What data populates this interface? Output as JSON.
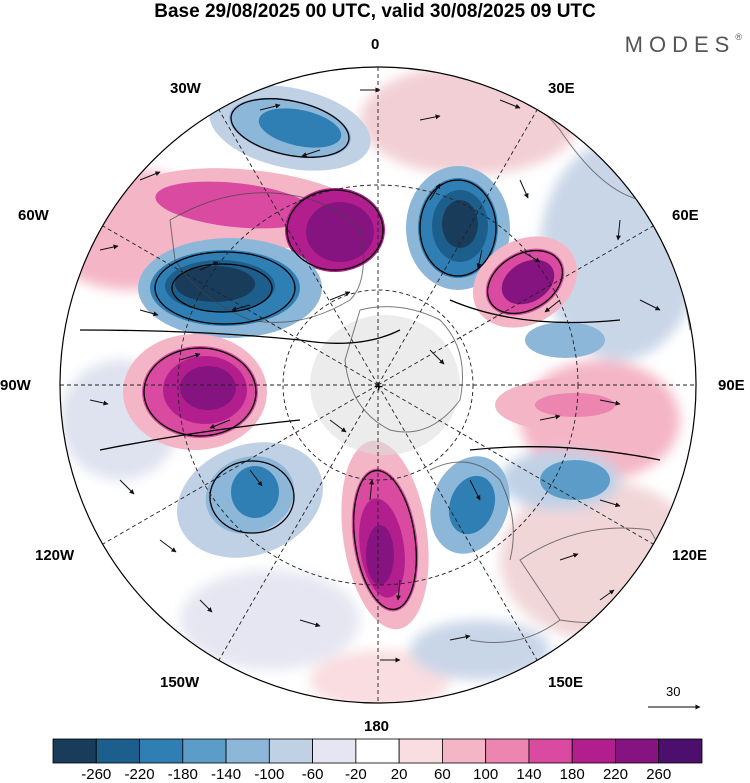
{
  "title": "Base 29/08/2025 00 UTC, valid 30/08/2025 09 UTC",
  "brand": {
    "name": "MODES",
    "mark": "®"
  },
  "map": {
    "projection": "north-polar-stereographic",
    "longitude_labels": {
      "lon0": "0",
      "lon30e": "30E",
      "lon60e": "60E",
      "lon90e": "90E",
      "lon120e": "120E",
      "lon150e": "150E",
      "lon180": "180",
      "lon150w": "150W",
      "lon120w": "120W",
      "lon90w": "90W",
      "lon60w": "60W",
      "lon30w": "30W"
    },
    "vector_scale": {
      "label": "30"
    }
  },
  "colorbar": {
    "labels": [
      "-260",
      "-220",
      "-180",
      "-140",
      "-100",
      "-60",
      "-20",
      "20",
      "60",
      "100",
      "140",
      "180",
      "220",
      "260"
    ],
    "colors": [
      "#183c5a",
      "#1d5f8c",
      "#2f7fb5",
      "#5b9cc8",
      "#8db7d9",
      "#c0d1e6",
      "#e5e6f1",
      "#ffffff",
      "#f9dde0",
      "#f4b6c6",
      "#ec85b0",
      "#d94aa0",
      "#b31e8f",
      "#851481",
      "#4d0f6e"
    ]
  }
}
